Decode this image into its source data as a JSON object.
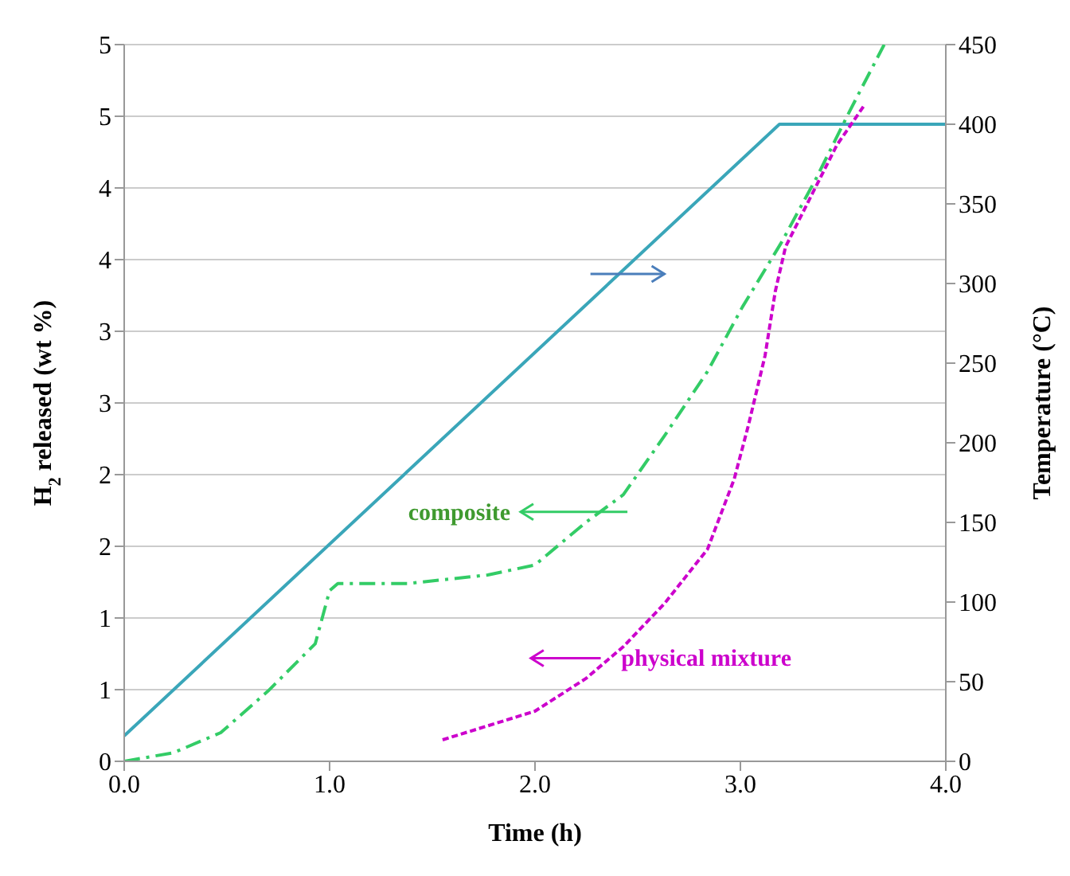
{
  "chart_data": {
    "type": "line",
    "xlabel": "Time (h)",
    "ylabel": "H$_{2}$ released (wt %)",
    "y2label": "Temperature (°C)",
    "xlim": [
      0,
      4
    ],
    "xticks": [
      {
        "value": 0,
        "label": "0.0"
      },
      {
        "value": 1,
        "label": "1.0"
      },
      {
        "value": 2,
        "label": "2.0"
      },
      {
        "value": 3,
        "label": "3.0"
      },
      {
        "value": 4,
        "label": "4.0"
      }
    ],
    "ylim": [
      0,
      5
    ],
    "yticks": [
      0,
      {
        "value": 0.5,
        "label": "1"
      },
      1,
      {
        "value": 1.5,
        "label": "2"
      },
      2,
      {
        "value": 2.5,
        "label": "3"
      },
      3,
      {
        "value": 3.5,
        "label": "4"
      },
      4,
      {
        "value": 4.5,
        "label": "5"
      },
      5
    ],
    "y2lim": [
      0,
      450
    ],
    "y2ticks": [
      0,
      50,
      100,
      150,
      200,
      250,
      300,
      350,
      400,
      450
    ],
    "grid": "y",
    "marker": "none",
    "series": [
      {
        "color": "#3aa6b9",
        "axis": "y2",
        "line_style": "solid",
        "x": [
          0,
          3.19,
          4.0
        ],
        "values": [
          16,
          400,
          400
        ]
      },
      {
        "name": "composite",
        "color": "#33cc66",
        "line_style": "dashed",
        "x": [
          0,
          0.24,
          0.47,
          0.7,
          0.93,
          1.0,
          1.04,
          1.38,
          1.77,
          2.0,
          2.25,
          2.43,
          2.63,
          2.84,
          3.01,
          3.2,
          3.37,
          3.53,
          3.7
        ],
        "values": [
          0,
          0.06,
          0.2,
          0.49,
          0.82,
          1.19,
          1.24,
          1.24,
          1.3,
          1.37,
          1.67,
          1.86,
          2.27,
          2.72,
          3.17,
          3.62,
          4.07,
          4.53,
          5.0
        ]
      },
      {
        "name": "physical mixture",
        "color": "#cc00cc",
        "line_style": "dotted",
        "x": [
          1.55,
          2.0,
          2.25,
          2.43,
          2.63,
          2.84,
          2.97,
          3.04,
          3.12,
          3.17,
          3.22,
          3.35,
          3.47,
          3.6
        ],
        "values": [
          0.15,
          0.35,
          0.58,
          0.8,
          1.1,
          1.48,
          1.97,
          2.35,
          2.83,
          3.28,
          3.59,
          3.96,
          4.3,
          4.57
        ]
      }
    ]
  }
}
